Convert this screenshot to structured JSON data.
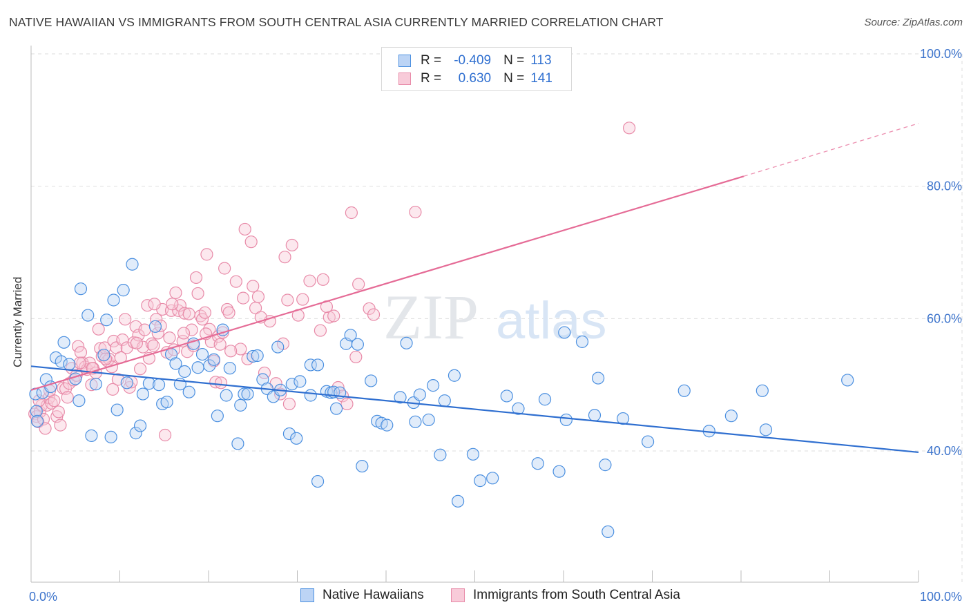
{
  "header": {
    "title": "NATIVE HAWAIIAN VS IMMIGRANTS FROM SOUTH CENTRAL ASIA CURRENTLY MARRIED CORRELATION CHART",
    "source": "Source: ZipAtlas.com"
  },
  "legend": {
    "rows": [
      {
        "r_label": "R =",
        "r_value": "-0.409",
        "n_label": "N =",
        "n_value": "113"
      },
      {
        "r_label": "R =",
        "r_value": "0.630",
        "n_label": "N =",
        "n_value": "141"
      }
    ]
  },
  "watermark": {
    "zip": "ZIP",
    "atlas": "atlas"
  },
  "colors": {
    "blue": "#4a8fe0",
    "blue_fill": "#bcd4f5",
    "blue_line": "#2f6fd0",
    "pink": "#e88aa8",
    "pink_fill": "#f8cbd9",
    "pink_line": "#e56b96",
    "grid": "#dddddd",
    "axis_text": "#3d74cc"
  },
  "chart_data": {
    "type": "scatter",
    "title": "NATIVE HAWAIIAN VS IMMIGRANTS FROM SOUTH CENTRAL ASIA CURRENTLY MARRIED CORRELATION CHART",
    "xlabel": "",
    "ylabel": "Currently Married",
    "xlim": [
      0,
      100
    ],
    "ylim": [
      20,
      102
    ],
    "x_tick_labels": [
      "0.0%",
      "100.0%"
    ],
    "y_ticks": [
      40,
      60,
      80,
      100
    ],
    "y_tick_labels": [
      "40.0%",
      "60.0%",
      "80.0%",
      "100.0%"
    ],
    "series": [
      {
        "name": "Native Hawaiians",
        "color": "#4a8fe0",
        "r": -0.409,
        "n": 113,
        "trend": {
          "x0": 0,
          "y0": 52.8,
          "x1": 100,
          "y1": 39.8
        },
        "points": [
          [
            0.5,
            48.6
          ],
          [
            0.6,
            46
          ],
          [
            0.7,
            44.5
          ],
          [
            1.3,
            48.8
          ],
          [
            1.7,
            50.8
          ],
          [
            2.2,
            49.7
          ],
          [
            2.8,
            54.1
          ],
          [
            3.4,
            53.5
          ],
          [
            3.7,
            56.4
          ],
          [
            4.3,
            53.1
          ],
          [
            5,
            50.9
          ],
          [
            5.4,
            47.6
          ],
          [
            5.6,
            64.5
          ],
          [
            6.4,
            60.5
          ],
          [
            6.8,
            42.3
          ],
          [
            7.3,
            50.1
          ],
          [
            8.2,
            54.5
          ],
          [
            8.5,
            59.8
          ],
          [
            9,
            42.1
          ],
          [
            9.3,
            62.8
          ],
          [
            9.7,
            46.2
          ],
          [
            10.4,
            64.3
          ],
          [
            10.8,
            50.3
          ],
          [
            11.4,
            68.2
          ],
          [
            11.8,
            42.7
          ],
          [
            12.3,
            43.8
          ],
          [
            12.6,
            48.6
          ],
          [
            13.3,
            50.2
          ],
          [
            14,
            58.8
          ],
          [
            14.4,
            50
          ],
          [
            14.8,
            47.1
          ],
          [
            15.3,
            47.4
          ],
          [
            15.8,
            54.6
          ],
          [
            16.3,
            53.2
          ],
          [
            16.8,
            50.1
          ],
          [
            17.3,
            52
          ],
          [
            17.8,
            48.9
          ],
          [
            18.3,
            56.2
          ],
          [
            18.8,
            52.6
          ],
          [
            19.3,
            54.6
          ],
          [
            20.1,
            52.9
          ],
          [
            20.6,
            53.8
          ],
          [
            21,
            45.3
          ],
          [
            21.6,
            58.3
          ],
          [
            22,
            48.4
          ],
          [
            22.4,
            52.5
          ],
          [
            23.3,
            41.1
          ],
          [
            23.6,
            46.9
          ],
          [
            24,
            48.6
          ],
          [
            24.4,
            48.6
          ],
          [
            25,
            54.3
          ],
          [
            25.5,
            54.4
          ],
          [
            26.1,
            50.8
          ],
          [
            26.6,
            49.4
          ],
          [
            27.3,
            48.2
          ],
          [
            27.8,
            55.7
          ],
          [
            28.1,
            49.2
          ],
          [
            29.1,
            42.6
          ],
          [
            29.4,
            50.1
          ],
          [
            29.9,
            41.9
          ],
          [
            30.3,
            50.5
          ],
          [
            31.5,
            53
          ],
          [
            31.5,
            48.4
          ],
          [
            32.3,
            53
          ],
          [
            32.3,
            35.4
          ],
          [
            33.3,
            49
          ],
          [
            33.8,
            48.8
          ],
          [
            34.1,
            48.9
          ],
          [
            34.4,
            46.4
          ],
          [
            34.8,
            48.8
          ],
          [
            35.5,
            56.2
          ],
          [
            36,
            57.5
          ],
          [
            36.8,
            56.1
          ],
          [
            37.3,
            37.7
          ],
          [
            38.3,
            50.6
          ],
          [
            39,
            44.5
          ],
          [
            39.5,
            44.2
          ],
          [
            40.1,
            43.9
          ],
          [
            41.6,
            48.1
          ],
          [
            42.3,
            56.3
          ],
          [
            43.1,
            47.3
          ],
          [
            43.3,
            44.4
          ],
          [
            43.8,
            48.5
          ],
          [
            44.8,
            44.7
          ],
          [
            45.3,
            49.9
          ],
          [
            46.6,
            47.6
          ],
          [
            46.1,
            39.4
          ],
          [
            47.7,
            51.4
          ],
          [
            48.1,
            32.4
          ],
          [
            49.8,
            39.5
          ],
          [
            50.6,
            35.5
          ],
          [
            52,
            35.9
          ],
          [
            53.6,
            48.3
          ],
          [
            54.9,
            46.4
          ],
          [
            57.1,
            38.1
          ],
          [
            57.9,
            47.8
          ],
          [
            59.5,
            36.9
          ],
          [
            60.1,
            57.9
          ],
          [
            60.3,
            44.7
          ],
          [
            62.1,
            56.5
          ],
          [
            63.5,
            45.4
          ],
          [
            63.9,
            51
          ],
          [
            64.7,
            37.9
          ],
          [
            65,
            27.8
          ],
          [
            66.7,
            44.9
          ],
          [
            69.5,
            41.4
          ],
          [
            73.6,
            49.1
          ],
          [
            76.4,
            43
          ],
          [
            78.9,
            45.3
          ],
          [
            82.4,
            49.1
          ],
          [
            82.8,
            43.2
          ],
          [
            92,
            50.7
          ]
        ]
      },
      {
        "name": "Immigrants from South Central Asia",
        "color": "#e88aa8",
        "r": 0.63,
        "n": 141,
        "trend": {
          "x0": 0,
          "y0": 49.2,
          "x1": 80.3,
          "y1": 81.5
        },
        "trend_extension": {
          "x0": 80.3,
          "y0": 81.5,
          "x1": 100,
          "y1": 89.5
        },
        "points": [
          [
            0.4,
            45.6
          ],
          [
            0.6,
            45.2
          ],
          [
            0.8,
            44.4
          ],
          [
            1,
            45.9
          ],
          [
            1.2,
            46.9
          ],
          [
            1.4,
            44.8
          ],
          [
            1.6,
            43.4
          ],
          [
            1.8,
            46.9
          ],
          [
            2,
            48
          ],
          [
            2.3,
            47.2
          ],
          [
            2.6,
            47.6
          ],
          [
            2.9,
            45.2
          ],
          [
            3.1,
            45.9
          ],
          [
            3.3,
            43.9
          ],
          [
            3.6,
            49.5
          ],
          [
            3.9,
            49.4
          ],
          [
            4.1,
            48.1
          ],
          [
            4.3,
            50.2
          ],
          [
            4.6,
            52.5
          ],
          [
            4.8,
            50.7
          ],
          [
            5.1,
            51.4
          ],
          [
            5.3,
            55.8
          ],
          [
            5.6,
            54.9
          ],
          [
            5.8,
            53.3
          ],
          [
            6.1,
            52.7
          ],
          [
            6.3,
            52.3
          ],
          [
            6.6,
            53.3
          ],
          [
            6.8,
            50
          ],
          [
            7,
            52.5
          ],
          [
            7.3,
            51.8
          ],
          [
            7.6,
            58.4
          ],
          [
            7.8,
            55.5
          ],
          [
            8,
            54.3
          ],
          [
            8.3,
            55.6
          ],
          [
            8.6,
            53.6
          ],
          [
            8.8,
            53.9
          ],
          [
            9.1,
            52.7
          ],
          [
            9.3,
            56.6
          ],
          [
            9.6,
            55.6
          ],
          [
            9.8,
            50.8
          ],
          [
            10.1,
            54.1
          ],
          [
            10.3,
            56.8
          ],
          [
            10.6,
            59.9
          ],
          [
            10.8,
            55.6
          ],
          [
            11.1,
            49.6
          ],
          [
            11.3,
            50.4
          ],
          [
            11.6,
            56.4
          ],
          [
            11.8,
            58.8
          ],
          [
            12.1,
            57.5
          ],
          [
            12.3,
            52.4
          ],
          [
            12.6,
            55.7
          ],
          [
            12.8,
            58.3
          ],
          [
            13.1,
            62
          ],
          [
            13.3,
            54
          ],
          [
            13.6,
            56.2
          ],
          [
            13.8,
            55.9
          ],
          [
            14.1,
            59.9
          ],
          [
            14.3,
            57.8
          ],
          [
            14.6,
            58.9
          ],
          [
            14.8,
            61.4
          ],
          [
            15.1,
            42.4
          ],
          [
            15.3,
            54.9
          ],
          [
            15.6,
            57.1
          ],
          [
            15.8,
            61.2
          ],
          [
            16.1,
            55.3
          ],
          [
            16.3,
            63.9
          ],
          [
            16.6,
            61.2
          ],
          [
            16.8,
            62
          ],
          [
            17.1,
            56.6
          ],
          [
            17.3,
            60.8
          ],
          [
            17.6,
            55
          ],
          [
            17.8,
            60.7
          ],
          [
            18.1,
            58.3
          ],
          [
            18.3,
            55.9
          ],
          [
            18.6,
            66.2
          ],
          [
            18.8,
            63.8
          ],
          [
            19.1,
            60.4
          ],
          [
            19.3,
            59.9
          ],
          [
            19.6,
            60.9
          ],
          [
            19.8,
            69.7
          ],
          [
            20.1,
            58.4
          ],
          [
            20.3,
            56.5
          ],
          [
            20.6,
            53.6
          ],
          [
            20.8,
            50.4
          ],
          [
            21.1,
            57.3
          ],
          [
            21.3,
            56.1
          ],
          [
            21.6,
            57.9
          ],
          [
            21.8,
            67.6
          ],
          [
            22.1,
            61.4
          ],
          [
            22.3,
            60.9
          ],
          [
            23.1,
            65.6
          ],
          [
            23.6,
            55.4
          ],
          [
            23.9,
            63.1
          ],
          [
            24.1,
            73.5
          ],
          [
            24.4,
            53.9
          ],
          [
            24.8,
            71.6
          ],
          [
            25,
            64.9
          ],
          [
            25.3,
            61.6
          ],
          [
            25.6,
            63.3
          ],
          [
            26.3,
            51.8
          ],
          [
            27.6,
            50.2
          ],
          [
            28.4,
            56.2
          ],
          [
            28.1,
            48.6
          ],
          [
            28.6,
            69.3
          ],
          [
            28.9,
            62.8
          ],
          [
            29.1,
            47.1
          ],
          [
            29.4,
            71.1
          ],
          [
            30.1,
            60.5
          ],
          [
            31.4,
            65.7
          ],
          [
            32.6,
            58.2
          ],
          [
            32.9,
            65.9
          ],
          [
            33.6,
            60.2
          ],
          [
            34.1,
            60.4
          ],
          [
            34.6,
            49.6
          ],
          [
            35.1,
            48.3
          ],
          [
            35.6,
            47.1
          ],
          [
            36.1,
            76
          ],
          [
            36.6,
            54.2
          ],
          [
            36.9,
            65.2
          ],
          [
            38.1,
            61.5
          ],
          [
            38.6,
            60.6
          ],
          [
            43.3,
            76.1
          ],
          [
            67.4,
            88.8
          ],
          [
            0.9,
            47.6
          ],
          [
            2.1,
            49.1
          ],
          [
            5.5,
            53.3
          ],
          [
            6.9,
            52.5
          ],
          [
            8.4,
            53.9
          ],
          [
            11.9,
            56.3
          ],
          [
            13.9,
            62.2
          ],
          [
            17.2,
            57.8
          ],
          [
            19.7,
            57.7
          ],
          [
            22.5,
            55.1
          ],
          [
            26.9,
            59.6
          ],
          [
            30.6,
            62.9
          ],
          [
            9.2,
            49.3
          ],
          [
            15.9,
            62.2
          ],
          [
            21.4,
            50.3
          ],
          [
            25.9,
            60.2
          ],
          [
            33.3,
            61.8
          ]
        ]
      }
    ]
  },
  "bottom_legend": [
    "Native Hawaiians",
    "Immigrants from South Central Asia"
  ]
}
